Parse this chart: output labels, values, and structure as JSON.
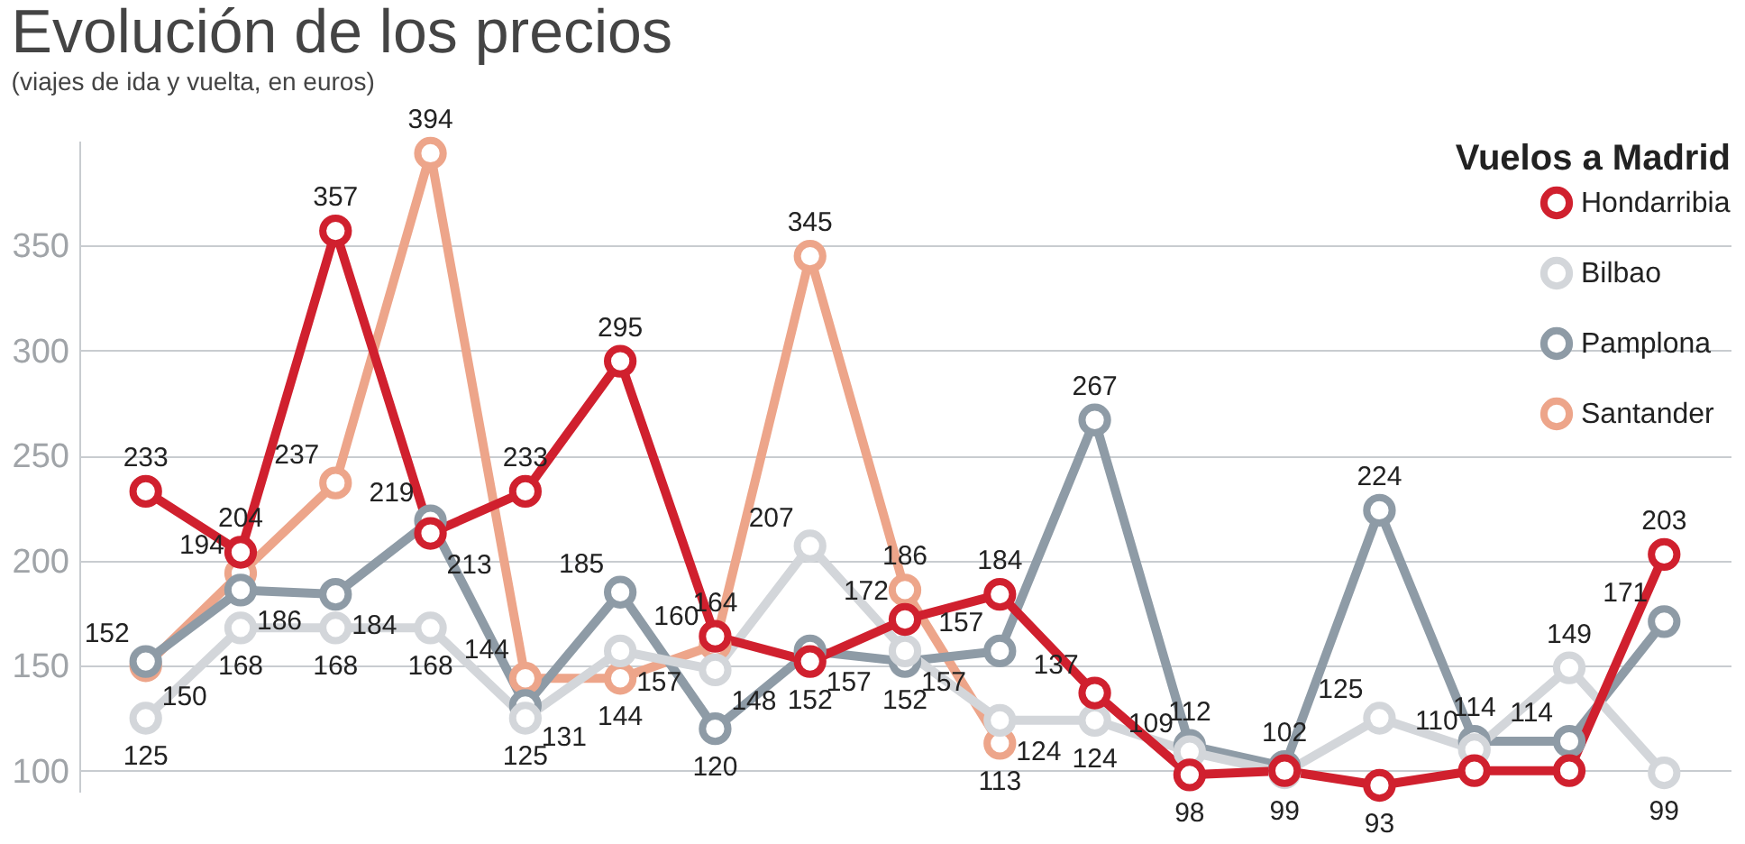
{
  "chart_data": {
    "type": "line",
    "title": "Evolución de los precios",
    "subtitle": "(viajes de ida y vuelta, en euros)",
    "legend_title": "Vuelos a Madrid",
    "categories": [
      null,
      null,
      null,
      null,
      null,
      null,
      null,
      null,
      null,
      null,
      null,
      null,
      null,
      null,
      null,
      null,
      null
    ],
    "series": [
      {
        "name": "Hondarribia",
        "color": "#d0202e",
        "values": [
          233,
          204,
          357,
          213,
          233,
          295,
          164,
          152,
          172,
          184,
          137,
          98,
          100,
          93,
          100,
          100,
          203
        ],
        "value_labels": [
          "233",
          "204",
          "357",
          "213",
          "233",
          "295",
          "164",
          "152",
          "172",
          "184",
          "137",
          "98",
          null,
          "93",
          null,
          null,
          "203"
        ]
      },
      {
        "name": "Bilbao",
        "color": "#d3d6da",
        "values": [
          125,
          168,
          168,
          168,
          125,
          157,
          148,
          207,
          157,
          124,
          124,
          109,
          99,
          125,
          110,
          149,
          99
        ],
        "value_labels": [
          "125",
          "168",
          "168",
          "168",
          "125",
          "157",
          "148",
          "207",
          "157",
          "124",
          "124",
          "109",
          "99",
          "125",
          "110",
          "149",
          "99"
        ]
      },
      {
        "name": "Pamplona",
        "color": "#8e9ba6",
        "values": [
          152,
          186,
          184,
          219,
          131,
          185,
          120,
          157,
          152,
          157,
          267,
          112,
          102,
          224,
          114,
          114,
          171
        ],
        "value_labels": [
          "152",
          "186",
          "184",
          "219",
          "131",
          "185",
          "120",
          "157",
          "152",
          "157",
          "267",
          "112",
          "102",
          "224",
          "114",
          "114",
          "171"
        ]
      },
      {
        "name": "Santander",
        "color": "#eda58a",
        "values": [
          150,
          194,
          237,
          394,
          144,
          144,
          160,
          345,
          186,
          113,
          null,
          null,
          null,
          null,
          null,
          null,
          null
        ],
        "value_labels": [
          "150",
          "194",
          "237",
          "394",
          "144",
          "144",
          "160",
          "345",
          "186",
          "113",
          null,
          null,
          null,
          null,
          null,
          null,
          null
        ]
      }
    ],
    "ylim": [
      90,
      400
    ],
    "yticks": [
      100,
      150,
      200,
      250,
      300,
      350
    ],
    "grid": "y",
    "legend": "top right",
    "marker": "circle",
    "line_style": "solid"
  }
}
